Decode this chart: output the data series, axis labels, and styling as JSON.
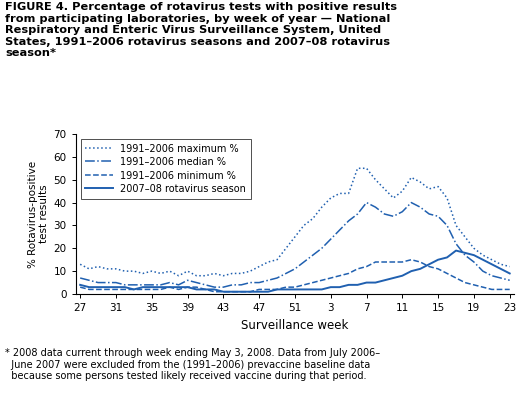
{
  "title": "FIGURE 4. Percentage of rotavirus tests with positive results\nfrom participating laboratories, by week of year — National\nRespiratory and Enteric Virus Surveillance System, United\nStates, 1991–2006 rotavirus seasons and 2007–08 rotavirus\nseason*",
  "footnote": "* 2008 data current through week ending May 3, 2008. Data from July 2006–\n  June 2007 were excluded from the (1991–2006) prevaccine baseline data\n  because some persons tested likely received vaccine during that period.",
  "xlabel": "Surveillance week",
  "ylabel": "% Rotavirus-positive\ntest results",
  "ylim": [
    0,
    70
  ],
  "yticks": [
    0,
    10,
    20,
    30,
    40,
    50,
    60,
    70
  ],
  "xtick_labels": [
    "27",
    "31",
    "35",
    "39",
    "43",
    "47",
    "51",
    "3",
    "7",
    "11",
    "15",
    "19",
    "23"
  ],
  "xtick_positions": [
    0,
    4,
    8,
    12,
    16,
    20,
    24,
    28,
    32,
    36,
    40,
    44,
    48
  ],
  "color": "#2060b0",
  "legend_labels": [
    "1991–2006 maximum %",
    "1991–2006 median %",
    "1991–2006 minimum %",
    "2007–08 rotavirus season"
  ],
  "maximum": [
    13,
    11,
    12,
    11,
    11,
    10,
    10,
    9,
    10,
    9,
    10,
    8,
    10,
    8,
    8,
    9,
    8,
    9,
    9,
    10,
    12,
    14,
    15,
    20,
    25,
    30,
    33,
    38,
    42,
    44,
    44,
    55,
    55,
    50,
    46,
    42,
    45,
    51,
    49,
    46,
    47,
    42,
    30,
    25,
    20,
    17,
    15,
    13,
    12
  ],
  "median": [
    7,
    6,
    5,
    5,
    5,
    4,
    4,
    4,
    4,
    4,
    5,
    4,
    6,
    5,
    4,
    3,
    3,
    4,
    4,
    5,
    5,
    6,
    7,
    9,
    11,
    14,
    17,
    20,
    24,
    28,
    32,
    35,
    40,
    38,
    35,
    34,
    36,
    40,
    38,
    35,
    34,
    30,
    22,
    17,
    14,
    10,
    8,
    7,
    6
  ],
  "minimum": [
    3,
    2,
    2,
    2,
    2,
    2,
    2,
    2,
    2,
    2,
    3,
    2,
    3,
    3,
    2,
    1,
    1,
    1,
    1,
    1,
    2,
    2,
    2,
    3,
    3,
    4,
    5,
    6,
    7,
    8,
    9,
    11,
    12,
    14,
    14,
    14,
    14,
    15,
    14,
    12,
    11,
    9,
    7,
    5,
    4,
    3,
    2,
    2,
    2
  ],
  "season0708": [
    4,
    3,
    3,
    3,
    3,
    3,
    2,
    3,
    3,
    3,
    3,
    3,
    3,
    2,
    2,
    2,
    1,
    1,
    1,
    1,
    1,
    1,
    2,
    2,
    2,
    2,
    2,
    2,
    3,
    3,
    4,
    4,
    5,
    5,
    6,
    7,
    8,
    10,
    11,
    13,
    15,
    16,
    19,
    18,
    17,
    15,
    13,
    11,
    9
  ]
}
